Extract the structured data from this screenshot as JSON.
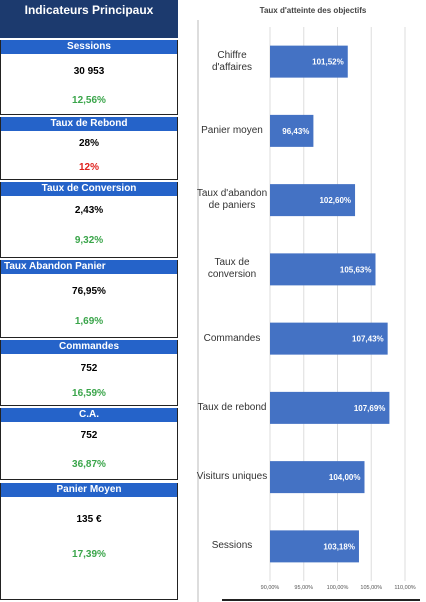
{
  "kpi_panel": {
    "title": "Indicateurs Principaux",
    "items": [
      {
        "label": "Sessions",
        "value": "30 953",
        "change": "12,56%",
        "change_color": "#3aa54a"
      },
      {
        "label": "Taux de Rebond",
        "value": "28%",
        "change": "12%",
        "change_color": "#e0211d"
      },
      {
        "label": "Taux de Conversion",
        "value": "2,43%",
        "change": "9,32%",
        "change_color": "#3aa54a"
      },
      {
        "label": "Taux Abandon Panier",
        "value": "76,95%",
        "change": "1,69%",
        "change_color": "#3aa54a"
      },
      {
        "label": "Commandes",
        "value": "752",
        "change": "16,59%",
        "change_color": "#3aa54a"
      },
      {
        "label": "C.A.",
        "value": "752",
        "change": "36,87%",
        "change_color": "#3aa54a"
      },
      {
        "label": "Panier Moyen",
        "value": "135 €",
        "change": "17,39%",
        "change_color": "#3aa54a"
      }
    ]
  },
  "chart_data": {
    "type": "barh",
    "title": "Taux d'atteinte des objectifs",
    "categories": [
      "Chiffre d'affaires",
      "Panier moyen",
      "Taux d'abandon de paniers",
      "Taux de conversion",
      "Commandes",
      "Taux de rebond",
      "Visiturs uniques",
      "Sessions"
    ],
    "values": [
      101.52,
      96.43,
      102.6,
      105.63,
      107.43,
      107.69,
      104.0,
      103.18
    ],
    "value_labels": [
      "101,52%",
      "96,43%",
      "102,60%",
      "105,63%",
      "107,43%",
      "107,69%",
      "104,00%",
      "103,18%"
    ],
    "color": "#4472c4",
    "xlim": [
      90,
      110
    ],
    "xticks": [
      {
        "value": 90,
        "label": "90,00%"
      },
      {
        "value": 95,
        "label": "95,00%"
      },
      {
        "value": 100,
        "label": "100,00%"
      },
      {
        "value": 105,
        "label": "105,00%"
      },
      {
        "value": 110,
        "label": "110,00%"
      }
    ],
    "grid": true
  }
}
